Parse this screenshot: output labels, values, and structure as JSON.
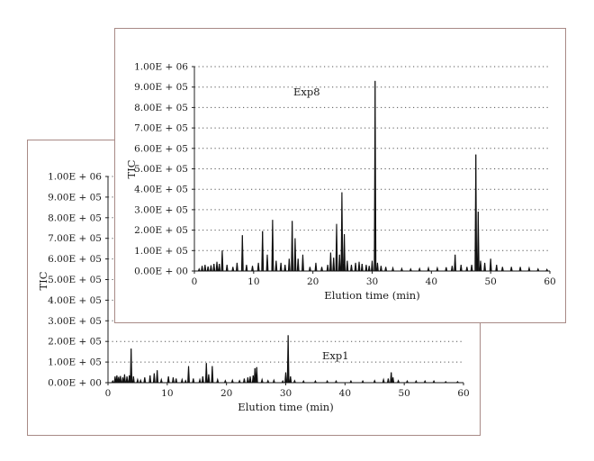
{
  "chart_data": [
    {
      "type": "line",
      "panel_label": "Exp1",
      "xlabel": "Elution time (min)",
      "ylabel": "TIC",
      "xlim": [
        0,
        60
      ],
      "ylim": [
        0,
        1000000
      ],
      "x_ticks": [
        "0",
        "10",
        "20",
        "30",
        "40",
        "50",
        "60"
      ],
      "y_ticks": [
        "0.00E + 00",
        "1.00E + 05",
        "2.00E + 05",
        "3.00E + 05",
        "4.00E + 05",
        "5.00E + 05",
        "6.00E + 05",
        "7.00E + 05",
        "8.00E + 05",
        "9.00E + 05",
        "1.00E + 06"
      ],
      "grid": true,
      "series": [
        {
          "x": [
            0.8,
            1.2,
            1.5,
            1.8,
            2.1,
            2.5,
            2.8,
            3.2,
            3.6,
            3.9,
            4.3,
            5.0,
            5.5,
            6.2,
            7.1,
            7.8,
            8.3,
            9.0,
            10.2,
            11.0,
            11.5,
            12.5,
            13.1,
            13.6,
            14.4,
            15.5,
            16.0,
            16.6,
            17.0,
            17.6,
            18.5,
            19.8,
            21.0,
            22.2,
            23.0,
            23.6,
            24.0,
            24.5,
            24.8,
            25.1,
            26.0,
            27.0,
            28.0,
            29.5,
            30.0,
            30.4,
            30.8,
            31.5,
            33.0,
            35.0,
            37.0,
            38.5,
            41.0,
            43.0,
            45.0,
            46.5,
            47.3,
            47.8,
            48.1,
            49.0,
            50.5,
            52.0,
            53.5,
            55.0,
            57.0,
            59.0
          ],
          "y": [
            8000,
            30000,
            35000,
            28000,
            32000,
            25000,
            40000,
            30000,
            35000,
            165000,
            30000,
            15000,
            12000,
            25000,
            35000,
            45000,
            60000,
            15000,
            30000,
            25000,
            20000,
            15000,
            10000,
            80000,
            20000,
            15000,
            30000,
            95000,
            40000,
            80000,
            15000,
            10000,
            12000,
            10000,
            20000,
            25000,
            30000,
            35000,
            70000,
            75000,
            15000,
            10000,
            12000,
            8000,
            50000,
            230000,
            30000,
            10000,
            8000,
            8000,
            8000,
            8000,
            8000,
            8000,
            10000,
            15000,
            20000,
            50000,
            25000,
            10000,
            8000,
            8000,
            8000,
            8000,
            5000,
            5000
          ]
        }
      ]
    },
    {
      "type": "line",
      "panel_label": "Exp8",
      "xlabel": "Elution time (min)",
      "ylabel": "TIC",
      "xlim": [
        0,
        60
      ],
      "ylim": [
        0,
        1000000
      ],
      "x_ticks": [
        "0",
        "10",
        "20",
        "30",
        "40",
        "50",
        "60"
      ],
      "y_ticks": [
        "0.00E + 00",
        "1.00E + 05",
        "2.00E + 05",
        "3.00E + 05",
        "4.00E + 05",
        "5.00E + 05",
        "6.00E + 05",
        "7.00E + 05",
        "8.00E + 05",
        "9.00E + 05",
        "1.00E + 06"
      ],
      "grid": true,
      "series": [
        {
          "x": [
            0.8,
            1.3,
            1.8,
            2.3,
            2.8,
            3.3,
            3.8,
            4.2,
            4.7,
            5.5,
            6.5,
            7.2,
            8.1,
            8.8,
            9.8,
            10.8,
            11.5,
            12.3,
            13.2,
            13.8,
            14.6,
            15.3,
            16.0,
            16.5,
            17.0,
            17.5,
            18.3,
            19.5,
            20.5,
            21.5,
            22.5,
            23.0,
            23.5,
            24.0,
            24.5,
            24.9,
            25.3,
            25.8,
            26.5,
            27.2,
            27.8,
            28.3,
            29.0,
            29.5,
            30.0,
            30.5,
            30.9,
            31.5,
            32.3,
            33.5,
            35.0,
            36.5,
            38.0,
            39.5,
            41.0,
            42.5,
            43.5,
            44.0,
            45.0,
            46.0,
            46.8,
            47.5,
            47.9,
            48.3,
            49.0,
            50.0,
            51.0,
            52.0,
            53.5,
            55.0,
            56.5,
            58.0,
            59.5
          ],
          "y": [
            10000,
            25000,
            30000,
            22000,
            28000,
            35000,
            45000,
            35000,
            100000,
            30000,
            20000,
            40000,
            175000,
            30000,
            25000,
            40000,
            195000,
            80000,
            250000,
            50000,
            40000,
            30000,
            60000,
            245000,
            160000,
            60000,
            80000,
            20000,
            40000,
            20000,
            30000,
            90000,
            65000,
            230000,
            80000,
            385000,
            180000,
            50000,
            30000,
            40000,
            45000,
            35000,
            30000,
            25000,
            50000,
            930000,
            40000,
            25000,
            20000,
            15000,
            12000,
            10000,
            12000,
            15000,
            15000,
            18000,
            25000,
            80000,
            30000,
            20000,
            30000,
            570000,
            290000,
            50000,
            40000,
            60000,
            30000,
            20000,
            20000,
            20000,
            15000,
            10000,
            8000
          ]
        }
      ]
    }
  ]
}
